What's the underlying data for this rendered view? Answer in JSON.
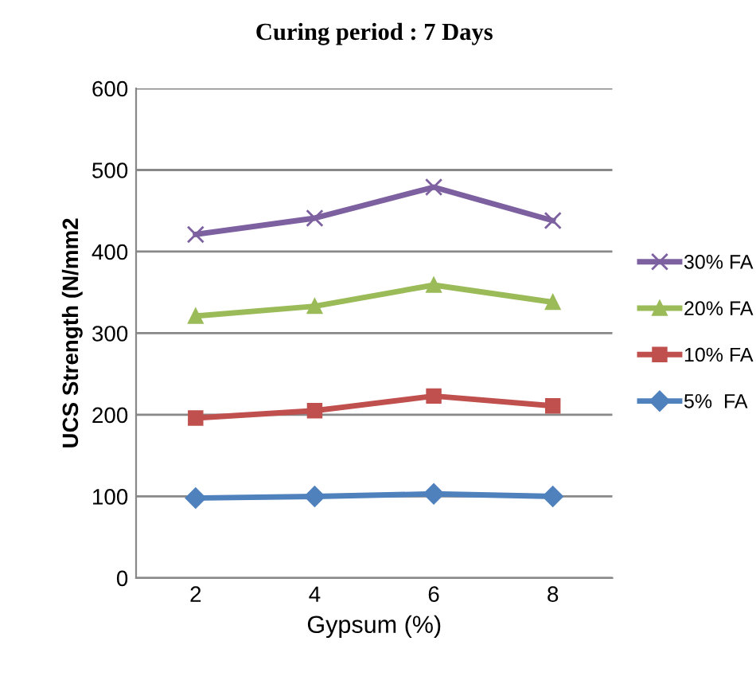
{
  "chart_data": {
    "type": "line",
    "title": "Curing period : 7 Days",
    "xlabel": "Gypsum (%)",
    "ylabel": "UCS Strength (N/mm2",
    "categories": [
      "2",
      "4",
      "6",
      "8"
    ],
    "series": [
      {
        "name": "30% FA",
        "color": "#7d60a0",
        "marker": "cross",
        "values": [
          421,
          441,
          479,
          438
        ]
      },
      {
        "name": "20% FA",
        "color": "#9bbb59",
        "marker": "triangle",
        "values": [
          321,
          333,
          359,
          338
        ]
      },
      {
        "name": "10% FA",
        "color": "#c0504d",
        "marker": "square",
        "values": [
          196,
          205,
          223,
          211
        ]
      },
      {
        "name": "5%  FA",
        "color": "#4f81bd",
        "marker": "diamond",
        "values": [
          98,
          100,
          103,
          100
        ]
      }
    ],
    "ylim": [
      0,
      600
    ],
    "yticks": [
      0,
      100,
      200,
      300,
      400,
      500,
      600
    ],
    "grid": "y",
    "legend": "right",
    "line_style": "solid"
  }
}
